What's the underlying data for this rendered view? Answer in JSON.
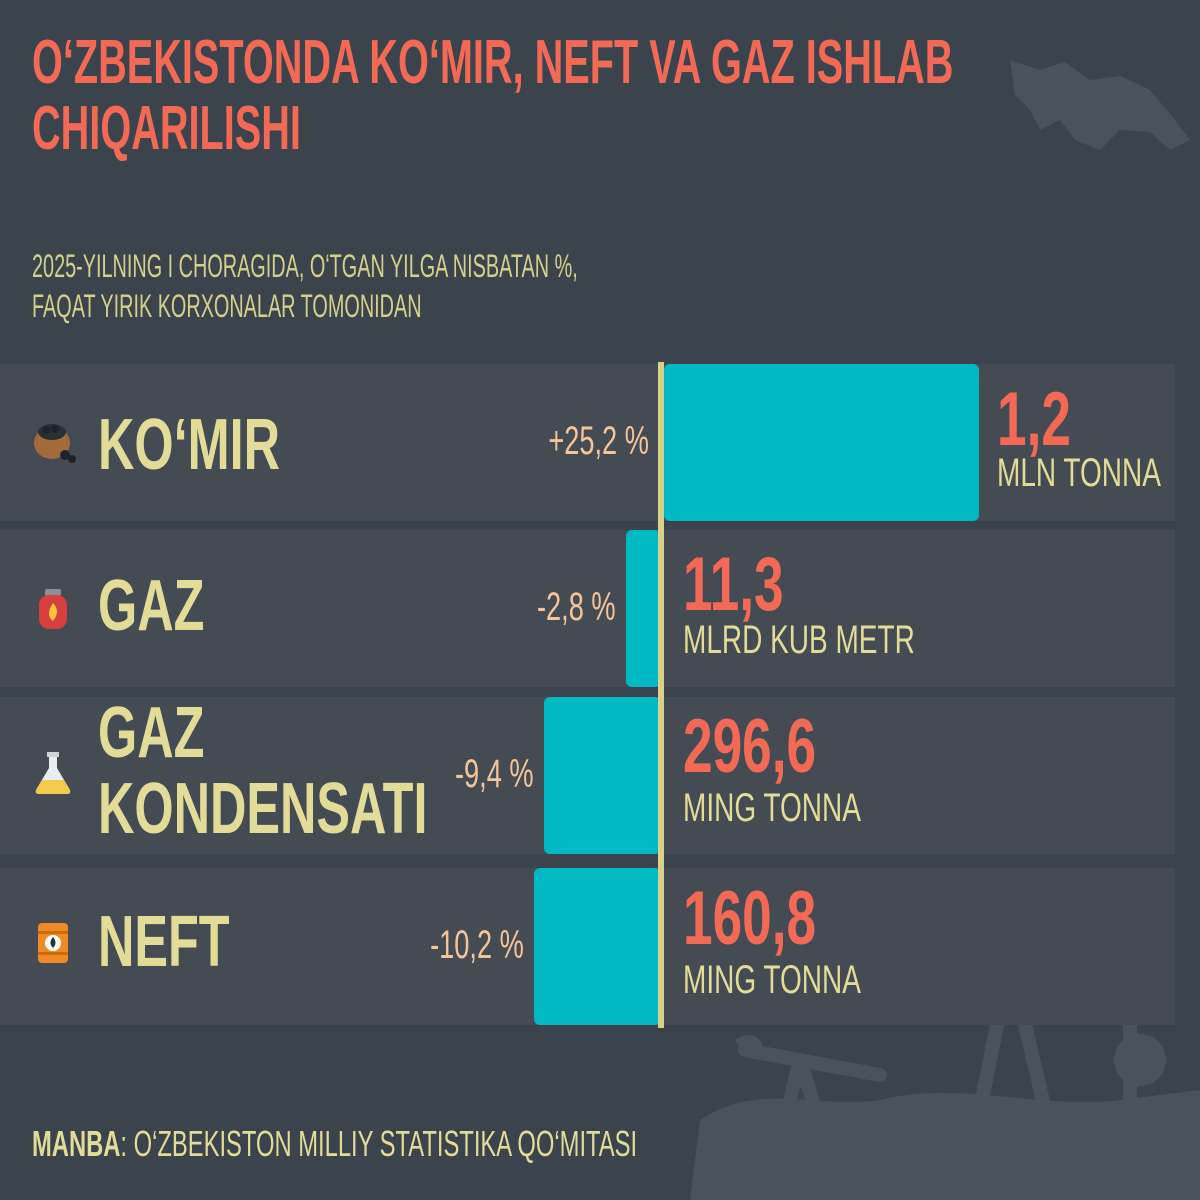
{
  "title_lines": [
    "O‘ZBEKISTONDA KO‘MIR, NEFT VA GAZ ISHLAB",
    "CHIQARILISHI"
  ],
  "subtitle_lines": [
    "2025-YILNING I CHORAGIDA, O‘TGAN YILGA NISBATAN %,",
    "FAQAT YIRIK KORXONALAR TOMONIDAN"
  ],
  "source": {
    "label": "MANBA",
    "text": ": O‘ZBEKISTON MILLIY STATISTIKA QO‘MITASI"
  },
  "colors": {
    "background": "#3b434c",
    "row": "#454b53",
    "bar": "#00b9c2",
    "title": "#f26a55",
    "label": "#e3dc98",
    "percent": "#f5c49a",
    "axis": "#d6d08b"
  },
  "chart_data": {
    "type": "bar",
    "orientation": "horizontal",
    "baseline": 0,
    "categories": [
      "KO‘MIR",
      "GAZ",
      "GAZ KONDENSATI",
      "NEFT"
    ],
    "category_label_lines": [
      [
        "KO‘MIR"
      ],
      [
        "GAZ"
      ],
      [
        "GAZ",
        "KONDENSATI"
      ],
      [
        "NEFT"
      ]
    ],
    "icons": [
      "coal-sack-icon",
      "gas-cylinder-icon",
      "flask-icon",
      "oil-barrel-icon"
    ],
    "values": [
      25.2,
      -2.8,
      -9.4,
      -10.2
    ],
    "percent_labels": [
      "+25,2 %",
      "-2,8 %",
      "-9,4 %",
      "-10,2 %"
    ],
    "volumes": [
      "1,2",
      "11,3",
      "296,6",
      "160,8"
    ],
    "units": [
      "MLN TONNA",
      "MLRD KUB METR",
      "MING TONNA",
      "MING TONNA"
    ]
  }
}
